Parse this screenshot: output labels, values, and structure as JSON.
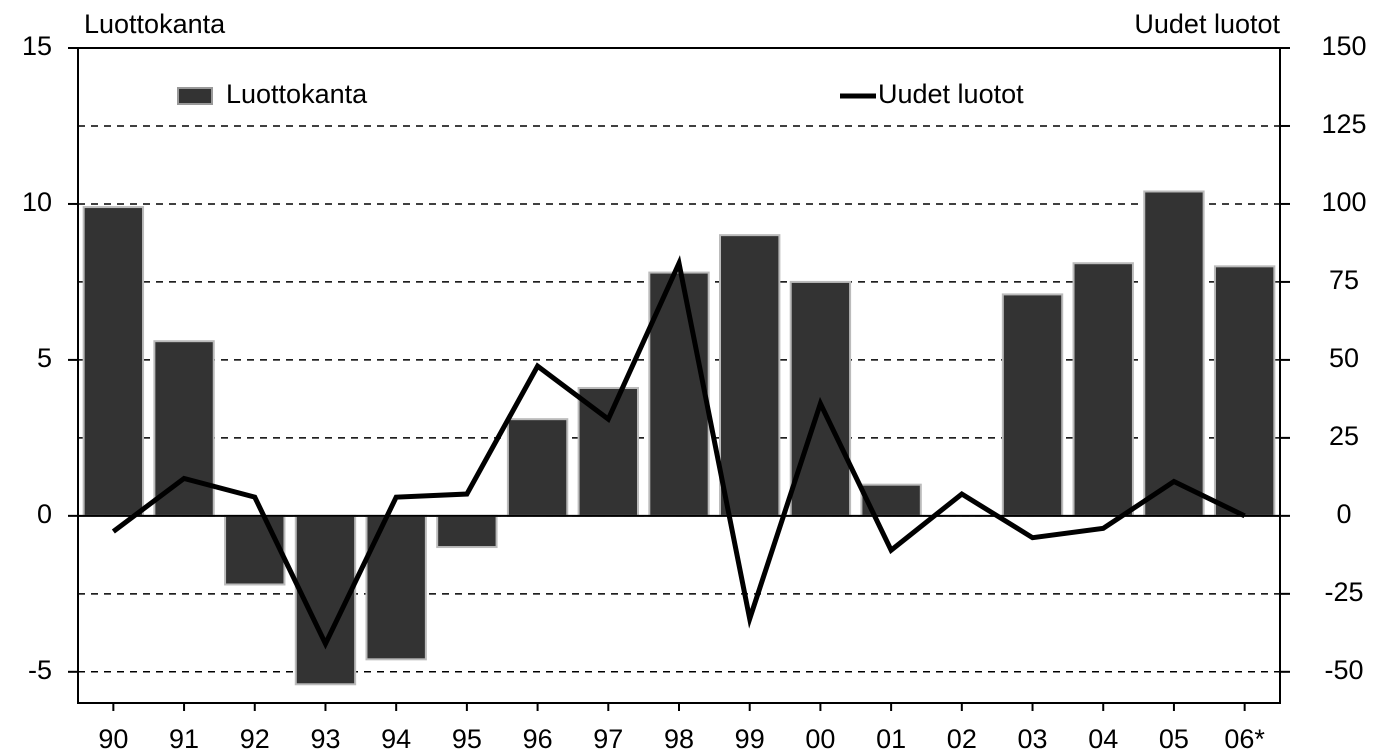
{
  "chart_data": {
    "type": "bar-line",
    "y_label": "Luottokanta",
    "y2_label": "Uudet luotot",
    "categories": [
      "90",
      "91",
      "92",
      "93",
      "94",
      "95",
      "96",
      "97",
      "98",
      "99",
      "00",
      "01",
      "02",
      "03",
      "04",
      "05",
      "06*"
    ],
    "series": [
      {
        "name": "Luottokanta",
        "type": "bar",
        "color": "#333333",
        "values": [
          9.9,
          5.6,
          -2.2,
          -5.4,
          -4.6,
          -1.0,
          3.1,
          4.1,
          7.8,
          9.0,
          7.5,
          1.0,
          0,
          7.1,
          8.1,
          10.4,
          8.0
        ]
      },
      {
        "name": "Uudet luotot",
        "type": "line",
        "axis": "y2",
        "color": "#000000",
        "values": [
          -5,
          12,
          6,
          -41,
          6,
          7,
          48,
          31,
          81,
          -33,
          36,
          -11,
          7,
          -7,
          -4,
          11,
          0
        ]
      }
    ],
    "ylim": [
      -6,
      15
    ],
    "yticks": [
      -5,
      0,
      5,
      10,
      15
    ],
    "y2lim": [
      -60,
      150
    ],
    "y2ticks": [
      -50,
      -25,
      0,
      25,
      50,
      75,
      100,
      125,
      150
    ],
    "grid": true
  }
}
